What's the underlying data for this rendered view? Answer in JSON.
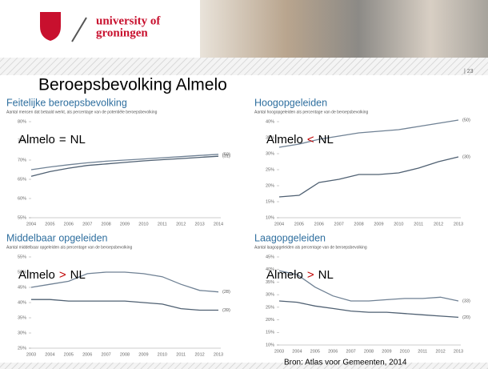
{
  "header": {
    "logo_line1": "university of",
    "logo_line2": "groningen"
  },
  "page_number": "| 23",
  "title": "Beroepsbevolking Almelo",
  "source": "Bron: Atlas voor Gemeenten, 2014",
  "chart_data": [
    {
      "type": "line",
      "title": "Feitelijke beroepsbevolking",
      "subtitle": "Aantal mensen dat betaald werkt, als percentage van de potentiële beroepsbevolking",
      "annotation": [
        "Almelo",
        "=",
        "NL"
      ],
      "annotation_symbol_color": "#000000",
      "categories": [
        "2004",
        "2005",
        "2006",
        "2007",
        "2008",
        "2009",
        "2010",
        "2011",
        "2012",
        "2013",
        "2014"
      ],
      "ylim": [
        55,
        80
      ],
      "yticks": [
        {
          "value": 55,
          "label": "55%"
        },
        {
          "value": 60,
          "label": "60%"
        },
        {
          "value": 65,
          "label": "65%"
        },
        {
          "value": 70,
          "label": "70%"
        },
        {
          "value": 75,
          "label": "75%"
        },
        {
          "value": 80,
          "label": "80%"
        }
      ],
      "series": [
        {
          "name": "(50)",
          "color": "#6f8194",
          "values": [
            67.5,
            68.2,
            68.8,
            69.3,
            69.7,
            70.0,
            70.3,
            70.6,
            70.9,
            71.2,
            71.5
          ]
        },
        {
          "name": "(31)",
          "color": "#4f6072",
          "values": [
            65.8,
            67.0,
            67.9,
            68.6,
            69.0,
            69.4,
            69.8,
            70.1,
            70.4,
            70.7,
            71.0
          ]
        }
      ]
    },
    {
      "type": "line",
      "title": "Hoogopgeleiden",
      "subtitle": "Aantal hoogopgeleiden als percentage van de beroepsbevolking",
      "annotation": [
        "Almelo",
        "<",
        "NL"
      ],
      "annotation_symbol_color": "#c00000",
      "categories": [
        "2004",
        "2005",
        "2006",
        "2007",
        "2008",
        "2009",
        "2010",
        "2011",
        "2012",
        "2013"
      ],
      "ylim": [
        10,
        40
      ],
      "yticks": [
        {
          "value": 10,
          "label": "10%"
        },
        {
          "value": 15,
          "label": "15%"
        },
        {
          "value": 20,
          "label": "20%"
        },
        {
          "value": 25,
          "label": "25%"
        },
        {
          "value": 30,
          "label": "30%"
        },
        {
          "value": 35,
          "label": "35%"
        },
        {
          "value": 40,
          "label": "40%"
        }
      ],
      "series": [
        {
          "name": "(50)",
          "color": "#6f8194",
          "values": [
            32,
            33,
            34.5,
            35.5,
            36.5,
            37,
            37.5,
            38.5,
            39.5,
            40.5
          ]
        },
        {
          "name": "(30)",
          "color": "#4f6072",
          "values": [
            16.5,
            17,
            21,
            22,
            23.5,
            23.5,
            24,
            25.5,
            27.5,
            29
          ]
        }
      ]
    },
    {
      "type": "line",
      "title": "Middelbaar opgeleiden",
      "subtitle": "Aantal middelbaar opgeleiden als percentage van de beroepsbevolking",
      "annotation": [
        "Almelo",
        ">",
        "NL"
      ],
      "annotation_symbol_color": "#c00000",
      "categories": [
        "2003",
        "2004",
        "2005",
        "2006",
        "2007",
        "2008",
        "2009",
        "2010",
        "2011",
        "2012",
        "2013"
      ],
      "ylim": [
        25,
        55
      ],
      "yticks": [
        {
          "value": 25,
          "label": "25%"
        },
        {
          "value": 30,
          "label": "30%"
        },
        {
          "value": 35,
          "label": "35%"
        },
        {
          "value": 40,
          "label": "40%"
        },
        {
          "value": 45,
          "label": "45%"
        },
        {
          "value": 50,
          "label": "50%"
        },
        {
          "value": 55,
          "label": "55%"
        }
      ],
      "series": [
        {
          "name": "(28)",
          "color": "#6f8194",
          "values": [
            45,
            46,
            47,
            49.5,
            50,
            50,
            49.5,
            48.5,
            46,
            44,
            43.5
          ]
        },
        {
          "name": "(39)",
          "color": "#4f6072",
          "values": [
            41,
            41,
            40.5,
            40.5,
            40.5,
            40.5,
            40,
            39.5,
            38,
            37.5,
            37.5
          ]
        }
      ]
    },
    {
      "type": "line",
      "title": "Laagopgeleiden",
      "subtitle": "Aantal laagopgeleiden als percentage van de beroepsbevolking",
      "annotation": [
        "Almelo",
        ">",
        "NL"
      ],
      "annotation_symbol_color": "#c00000",
      "categories": [
        "2003",
        "2004",
        "2005",
        "2006",
        "2007",
        "2008",
        "2009",
        "2010",
        "2011",
        "2012",
        "2013"
      ],
      "ylim": [
        10,
        45
      ],
      "yticks": [
        {
          "value": 10,
          "label": "10%"
        },
        {
          "value": 15,
          "label": "15%"
        },
        {
          "value": 20,
          "label": "20%"
        },
        {
          "value": 25,
          "label": "25%"
        },
        {
          "value": 30,
          "label": "30%"
        },
        {
          "value": 35,
          "label": "35%"
        },
        {
          "value": 40,
          "label": "40%"
        },
        {
          "value": 45,
          "label": "45%"
        }
      ],
      "series": [
        {
          "name": "(33)",
          "color": "#6f8194",
          "values": [
            39.5,
            38,
            33,
            29.5,
            27.5,
            27.5,
            28,
            28.5,
            28.5,
            29,
            27.5
          ]
        },
        {
          "name": "(20)",
          "color": "#4f6072",
          "values": [
            27.5,
            27,
            25.5,
            24.5,
            23.5,
            23,
            23,
            22.5,
            22,
            21.5,
            21
          ]
        }
      ]
    }
  ]
}
